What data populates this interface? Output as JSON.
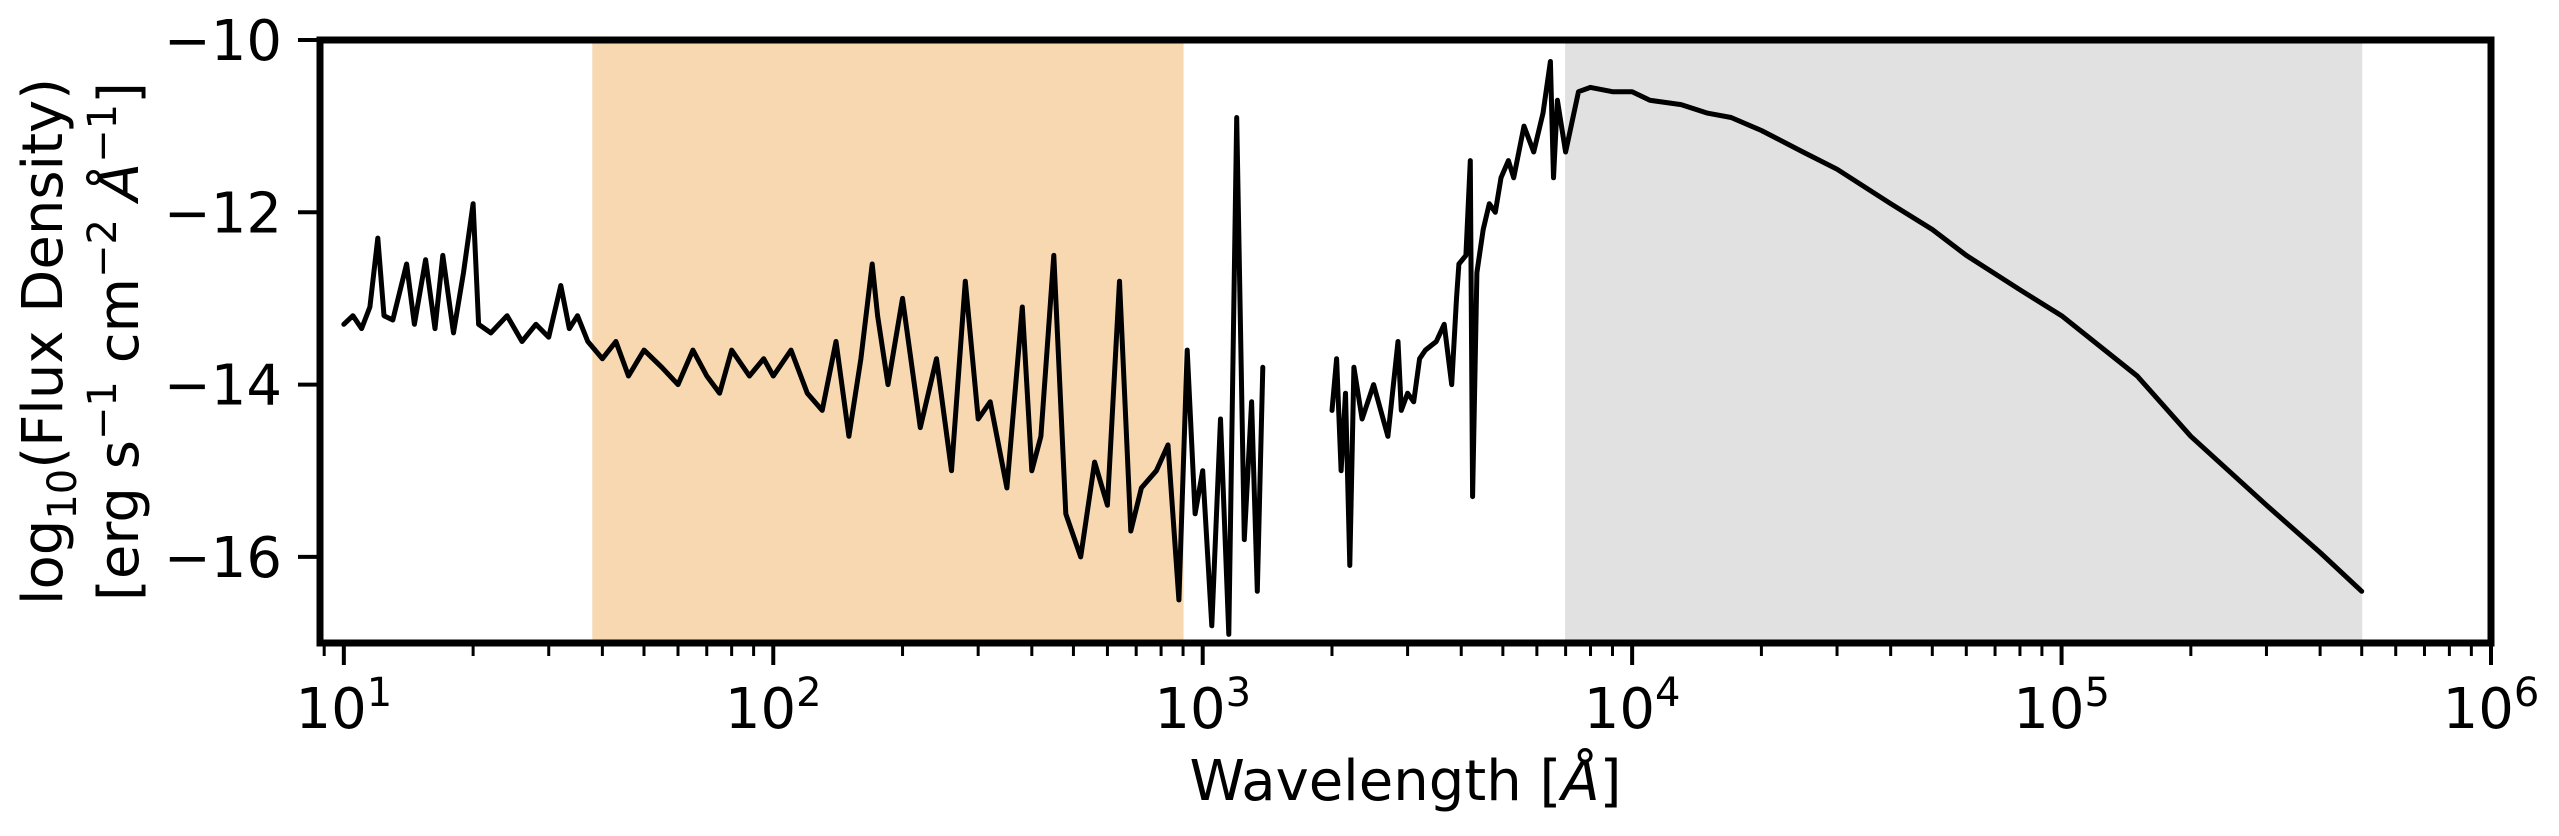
{
  "chart_data": {
    "type": "line",
    "title": "",
    "x_scale": "log",
    "y_scale": "linear",
    "xlim": [
      8.8,
      1000000
    ],
    "ylim": [
      -17,
      -10
    ],
    "xlabel_parts": [
      "Wavelength [",
      "Å",
      "]"
    ],
    "ylabel_line1_parts": [
      "log",
      "10",
      "(Flux Density)"
    ],
    "ylabel_line2_parts": [
      "[erg s",
      "−1",
      " cm",
      "−2",
      " ",
      "Å",
      "−1",
      "]"
    ],
    "x_ticks": [
      {
        "value": 10,
        "base": "10",
        "exp": "1"
      },
      {
        "value": 100,
        "base": "10",
        "exp": "2"
      },
      {
        "value": 1000,
        "base": "10",
        "exp": "3"
      },
      {
        "value": 10000,
        "base": "10",
        "exp": "4"
      },
      {
        "value": 100000,
        "base": "10",
        "exp": "5"
      },
      {
        "value": 1000000,
        "base": "10",
        "exp": "6"
      }
    ],
    "y_ticks": [
      {
        "value": -10,
        "label": "−10"
      },
      {
        "value": -12,
        "label": "−12"
      },
      {
        "value": -14,
        "label": "−14"
      },
      {
        "value": -16,
        "label": "−16"
      }
    ],
    "shaded_regions": [
      {
        "x0": 38,
        "x1": 900,
        "color": "#f7d8b0"
      },
      {
        "x0": 7000,
        "x1": 500000,
        "color": "#e1e1e1"
      }
    ],
    "series": [
      {
        "color": "#000000",
        "segments": [
          [
            [
              10,
              -13.3
            ],
            [
              10.5,
              -13.2
            ],
            [
              11,
              -13.35
            ],
            [
              11.5,
              -13.1
            ],
            [
              12,
              -12.3
            ],
            [
              12.4,
              -13.2
            ],
            [
              13,
              -13.25
            ],
            [
              14,
              -12.6
            ],
            [
              14.6,
              -13.3
            ],
            [
              15.5,
              -12.55
            ],
            [
              16.3,
              -13.35
            ],
            [
              17,
              -12.5
            ],
            [
              18,
              -13.4
            ],
            [
              19,
              -12.7
            ],
            [
              20,
              -11.9
            ],
            [
              20.6,
              -13.3
            ],
            [
              22,
              -13.4
            ],
            [
              24,
              -13.2
            ],
            [
              26,
              -13.5
            ],
            [
              28,
              -13.3
            ],
            [
              30,
              -13.45
            ],
            [
              32,
              -12.85
            ],
            [
              33.5,
              -13.35
            ],
            [
              35,
              -13.2
            ],
            [
              37,
              -13.5
            ],
            [
              40,
              -13.7
            ],
            [
              43,
              -13.5
            ],
            [
              46,
              -13.9
            ],
            [
              50,
              -13.6
            ],
            [
              55,
              -13.8
            ],
            [
              60,
              -14.0
            ],
            [
              65,
              -13.6
            ],
            [
              70,
              -13.9
            ],
            [
              75,
              -14.1
            ],
            [
              80,
              -13.6
            ],
            [
              88,
              -13.9
            ],
            [
              95,
              -13.7
            ],
            [
              100,
              -13.9
            ],
            [
              110,
              -13.6
            ],
            [
              120,
              -14.1
            ],
            [
              130,
              -14.3
            ],
            [
              140,
              -13.5
            ],
            [
              150,
              -14.6
            ],
            [
              160,
              -13.7
            ],
            [
              170,
              -12.6
            ],
            [
              175,
              -13.2
            ],
            [
              185,
              -14.0
            ],
            [
              200,
              -13.0
            ],
            [
              220,
              -14.5
            ],
            [
              240,
              -13.7
            ],
            [
              260,
              -15.0
            ],
            [
              280,
              -12.8
            ],
            [
              300,
              -14.4
            ],
            [
              320,
              -14.2
            ],
            [
              350,
              -15.2
            ],
            [
              380,
              -13.1
            ],
            [
              400,
              -15.0
            ],
            [
              420,
              -14.6
            ],
            [
              450,
              -12.5
            ],
            [
              480,
              -15.5
            ],
            [
              520,
              -16.0
            ],
            [
              560,
              -14.9
            ],
            [
              600,
              -15.4
            ],
            [
              640,
              -12.8
            ],
            [
              680,
              -15.7
            ],
            [
              720,
              -15.2
            ],
            [
              780,
              -15.0
            ],
            [
              830,
              -14.7
            ],
            [
              880,
              -16.5
            ],
            [
              920,
              -13.6
            ],
            [
              960,
              -15.5
            ],
            [
              1000,
              -15.0
            ],
            [
              1050,
              -16.8
            ],
            [
              1100,
              -14.4
            ],
            [
              1150,
              -16.9
            ],
            [
              1200,
              -10.9
            ],
            [
              1250,
              -15.8
            ],
            [
              1300,
              -14.2
            ],
            [
              1340,
              -16.4
            ],
            [
              1380,
              -13.8
            ]
          ],
          [
            [
              2000,
              -14.3
            ],
            [
              2050,
              -13.7
            ],
            [
              2100,
              -15.0
            ],
            [
              2150,
              -14.1
            ],
            [
              2200,
              -16.1
            ],
            [
              2250,
              -13.8
            ],
            [
              2350,
              -14.4
            ],
            [
              2500,
              -14.0
            ],
            [
              2700,
              -14.6
            ],
            [
              2850,
              -13.5
            ],
            [
              2900,
              -14.3
            ],
            [
              3000,
              -14.1
            ],
            [
              3100,
              -14.2
            ],
            [
              3200,
              -13.7
            ],
            [
              3300,
              -13.6
            ],
            [
              3500,
              -13.5
            ],
            [
              3650,
              -13.3
            ],
            [
              3800,
              -14.0
            ],
            [
              3900,
              -13.0
            ],
            [
              3950,
              -12.6
            ],
            [
              4100,
              -12.5
            ],
            [
              4200,
              -11.4
            ],
            [
              4250,
              -15.3
            ],
            [
              4350,
              -12.7
            ],
            [
              4500,
              -12.2
            ],
            [
              4650,
              -11.9
            ],
            [
              4800,
              -12.0
            ],
            [
              4950,
              -11.6
            ],
            [
              5150,
              -11.4
            ],
            [
              5300,
              -11.6
            ],
            [
              5600,
              -11.0
            ],
            [
              5900,
              -11.3
            ],
            [
              6200,
              -10.85
            ],
            [
              6450,
              -10.25
            ],
            [
              6560,
              -11.6
            ],
            [
              6700,
              -10.7
            ],
            [
              7000,
              -11.3
            ],
            [
              7500,
              -10.6
            ],
            [
              8000,
              -10.55
            ],
            [
              9000,
              -10.6
            ],
            [
              10000,
              -10.6
            ],
            [
              11000,
              -10.7
            ],
            [
              13000,
              -10.75
            ],
            [
              15000,
              -10.85
            ],
            [
              17000,
              -10.9
            ],
            [
              20000,
              -11.05
            ],
            [
              25000,
              -11.3
            ],
            [
              30000,
              -11.5
            ],
            [
              40000,
              -11.9
            ],
            [
              50000,
              -12.2
            ],
            [
              60000,
              -12.5
            ],
            [
              80000,
              -12.9
            ],
            [
              100000,
              -13.2
            ],
            [
              150000,
              -13.9
            ],
            [
              200000,
              -14.6
            ],
            [
              300000,
              -15.4
            ],
            [
              400000,
              -15.95
            ],
            [
              500000,
              -16.4
            ]
          ]
        ]
      }
    ]
  }
}
